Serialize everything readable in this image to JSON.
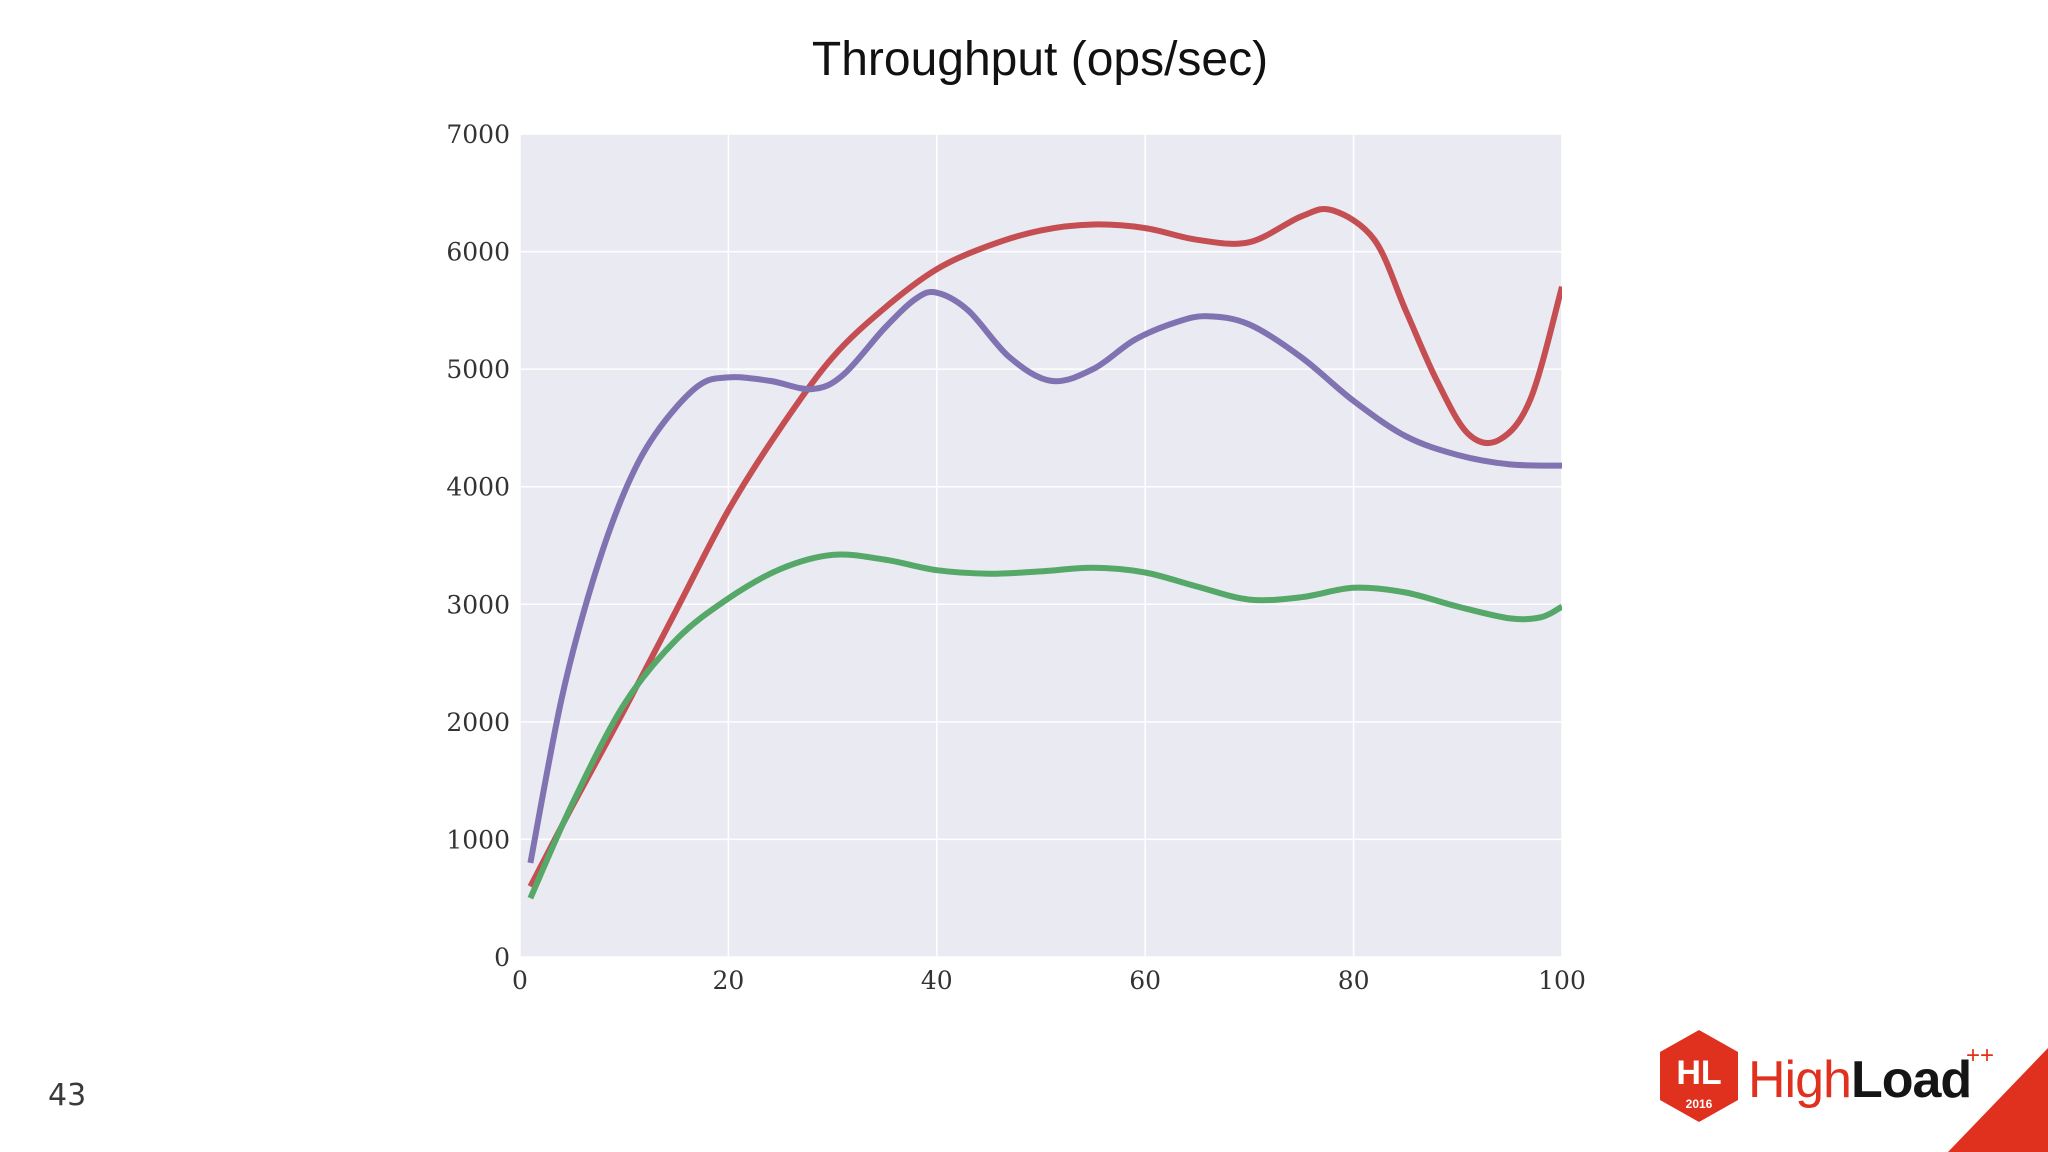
{
  "slide": {
    "number": "43"
  },
  "logo": {
    "mark_text": "HL",
    "mark_year": "2016",
    "word_high": "High",
    "word_load": "Load",
    "superscript": "++",
    "brand_color": "#e0301e"
  },
  "chart_data": {
    "type": "line",
    "title": "Throughput (ops/sec)",
    "xlabel": "",
    "ylabel": "",
    "xlim": [
      0,
      100
    ],
    "ylim": [
      0,
      7000
    ],
    "x_ticks": [
      0,
      20,
      40,
      60,
      80,
      100
    ],
    "y_ticks": [
      0,
      1000,
      2000,
      3000,
      4000,
      5000,
      6000,
      7000
    ],
    "grid": true,
    "legend": "none",
    "plot_background": "#eaeaf2",
    "series": [
      {
        "color": "#c44e52",
        "points": [
          [
            1,
            600
          ],
          [
            5,
            1280
          ],
          [
            10,
            2100
          ],
          [
            15,
            2950
          ],
          [
            20,
            3800
          ],
          [
            25,
            4500
          ],
          [
            30,
            5100
          ],
          [
            35,
            5520
          ],
          [
            40,
            5850
          ],
          [
            45,
            6050
          ],
          [
            50,
            6180
          ],
          [
            55,
            6230
          ],
          [
            60,
            6200
          ],
          [
            65,
            6100
          ],
          [
            70,
            6080
          ],
          [
            75,
            6300
          ],
          [
            78,
            6350
          ],
          [
            82,
            6100
          ],
          [
            85,
            5500
          ],
          [
            88,
            4900
          ],
          [
            91,
            4450
          ],
          [
            94,
            4400
          ],
          [
            97,
            4750
          ],
          [
            100,
            5700
          ]
        ]
      },
      {
        "color": "#8172b2",
        "points": [
          [
            1,
            800
          ],
          [
            4,
            2200
          ],
          [
            7,
            3200
          ],
          [
            10,
            3950
          ],
          [
            13,
            4450
          ],
          [
            17,
            4850
          ],
          [
            20,
            4930
          ],
          [
            24,
            4900
          ],
          [
            28,
            4830
          ],
          [
            31,
            4950
          ],
          [
            35,
            5350
          ],
          [
            38,
            5600
          ],
          [
            40,
            5650
          ],
          [
            43,
            5500
          ],
          [
            47,
            5100
          ],
          [
            51,
            4900
          ],
          [
            55,
            5000
          ],
          [
            59,
            5250
          ],
          [
            63,
            5400
          ],
          [
            66,
            5450
          ],
          [
            70,
            5380
          ],
          [
            75,
            5100
          ],
          [
            80,
            4730
          ],
          [
            85,
            4430
          ],
          [
            90,
            4270
          ],
          [
            95,
            4190
          ],
          [
            100,
            4180
          ]
        ]
      },
      {
        "color": "#55a868",
        "points": [
          [
            1,
            500
          ],
          [
            5,
            1300
          ],
          [
            10,
            2150
          ],
          [
            15,
            2700
          ],
          [
            20,
            3050
          ],
          [
            25,
            3300
          ],
          [
            30,
            3420
          ],
          [
            35,
            3380
          ],
          [
            40,
            3290
          ],
          [
            45,
            3260
          ],
          [
            50,
            3280
          ],
          [
            55,
            3310
          ],
          [
            60,
            3270
          ],
          [
            65,
            3150
          ],
          [
            70,
            3040
          ],
          [
            75,
            3060
          ],
          [
            80,
            3140
          ],
          [
            85,
            3100
          ],
          [
            90,
            2980
          ],
          [
            95,
            2880
          ],
          [
            98,
            2890
          ],
          [
            100,
            2980
          ]
        ]
      }
    ]
  }
}
